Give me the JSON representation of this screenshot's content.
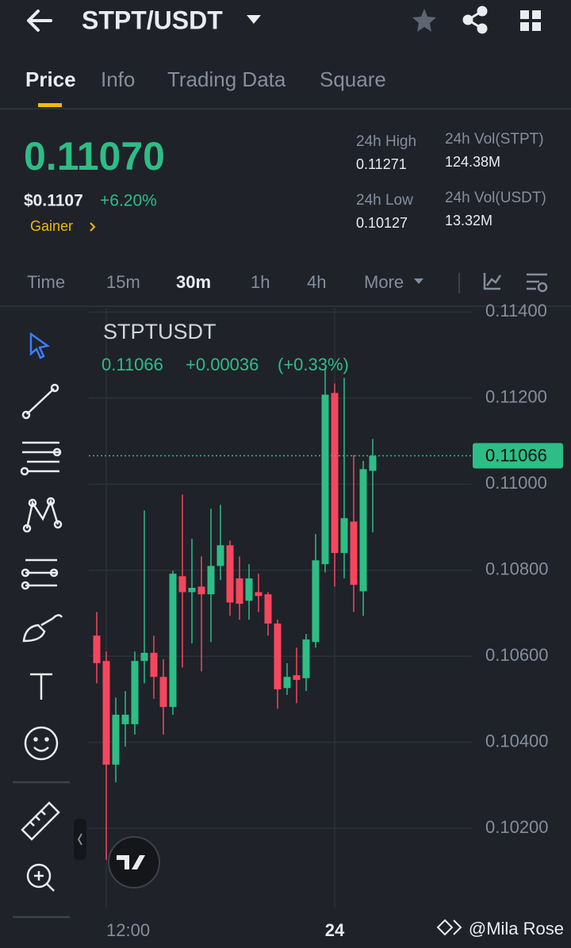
{
  "header": {
    "pair": "STPT/USDT"
  },
  "tabs": [
    "Price",
    "Info",
    "Trading Data",
    "Square"
  ],
  "ticker": {
    "price": "0.11070",
    "usd": "$0.1107",
    "change": "+6.20%",
    "tag": "Gainer",
    "stats": [
      {
        "label": "24h High",
        "value": "0.11271"
      },
      {
        "label": "24h Vol(STPT)",
        "value": "124.38M"
      },
      {
        "label": "24h Low",
        "value": "0.10127"
      },
      {
        "label": "24h Vol(USDT)",
        "value": "13.32M"
      }
    ]
  },
  "intervals": [
    "Time",
    "15m",
    "30m",
    "1h",
    "4h",
    "More"
  ],
  "chart_data": {
    "type": "candlestick",
    "title": "STPTUSDT",
    "legend": {
      "last": "0.11066",
      "change": "+0.00036",
      "percent": "(+0.33%)"
    },
    "up_color": "#2ebd85",
    "down_color": "#f6465d",
    "ylim": [
      0.0999,
      0.1141
    ],
    "yticks": [
      {
        "value": 0.114,
        "label": "0.11400"
      },
      {
        "value": 0.112,
        "label": "0.11200"
      },
      {
        "value": 0.11,
        "label": "0.11000"
      },
      {
        "value": 0.108,
        "label": "0.10800"
      },
      {
        "value": 0.106,
        "label": "0.10600"
      },
      {
        "value": 0.104,
        "label": "0.10400"
      },
      {
        "value": 0.102,
        "label": "0.10200"
      }
    ],
    "x_labels": [
      "12:00",
      "24"
    ],
    "last_price": {
      "value": 0.11066,
      "label": "0.11066"
    },
    "candles": [
      {
        "open": 0.10648,
        "high": 0.10703,
        "low": 0.10537,
        "close": 0.10584
      },
      {
        "open": 0.10589,
        "high": 0.10611,
        "low": 0.10127,
        "close": 0.10348
      },
      {
        "open": 0.10348,
        "high": 0.10504,
        "low": 0.10307,
        "close": 0.10464
      },
      {
        "open": 0.10442,
        "high": 0.10519,
        "low": 0.1039,
        "close": 0.10464
      },
      {
        "open": 0.10442,
        "high": 0.10611,
        "low": 0.10418,
        "close": 0.10589
      },
      {
        "open": 0.10589,
        "high": 0.10939,
        "low": 0.10537,
        "close": 0.10608
      },
      {
        "open": 0.10608,
        "high": 0.10648,
        "low": 0.10501,
        "close": 0.10552
      },
      {
        "open": 0.10552,
        "high": 0.10593,
        "low": 0.10418,
        "close": 0.10482
      },
      {
        "open": 0.10482,
        "high": 0.10799,
        "low": 0.10464,
        "close": 0.10792
      },
      {
        "open": 0.10786,
        "high": 0.10976,
        "low": 0.10574,
        "close": 0.10749
      },
      {
        "open": 0.10749,
        "high": 0.10873,
        "low": 0.1063,
        "close": 0.10759
      },
      {
        "open": 0.10762,
        "high": 0.10832,
        "low": 0.10565,
        "close": 0.10744
      },
      {
        "open": 0.10744,
        "high": 0.10943,
        "low": 0.10633,
        "close": 0.1081
      },
      {
        "open": 0.1081,
        "high": 0.10952,
        "low": 0.10777,
        "close": 0.10858
      },
      {
        "open": 0.10858,
        "high": 0.10869,
        "low": 0.10694,
        "close": 0.10725
      },
      {
        "open": 0.10781,
        "high": 0.10832,
        "low": 0.10685,
        "close": 0.10722
      },
      {
        "open": 0.10729,
        "high": 0.10814,
        "low": 0.10685,
        "close": 0.10781
      },
      {
        "open": 0.10749,
        "high": 0.10792,
        "low": 0.10703,
        "close": 0.1074
      },
      {
        "open": 0.10744,
        "high": 0.10749,
        "low": 0.10648,
        "close": 0.10676
      },
      {
        "open": 0.10676,
        "high": 0.10685,
        "low": 0.10478,
        "close": 0.10523
      },
      {
        "open": 0.10526,
        "high": 0.10584,
        "low": 0.1051,
        "close": 0.10552
      },
      {
        "open": 0.10556,
        "high": 0.1062,
        "low": 0.10491,
        "close": 0.10545
      },
      {
        "open": 0.10549,
        "high": 0.10652,
        "low": 0.10519,
        "close": 0.10639
      },
      {
        "open": 0.10633,
        "high": 0.10884,
        "low": 0.1062,
        "close": 0.10823
      },
      {
        "open": 0.10814,
        "high": 0.11271,
        "low": 0.10795,
        "close": 0.11208
      },
      {
        "open": 0.11212,
        "high": 0.11234,
        "low": 0.10762,
        "close": 0.1084
      },
      {
        "open": 0.1084,
        "high": 0.11247,
        "low": 0.10781,
        "close": 0.10921
      },
      {
        "open": 0.10913,
        "high": 0.11068,
        "low": 0.10703,
        "close": 0.10766
      },
      {
        "open": 0.10751,
        "high": 0.11054,
        "low": 0.10694,
        "close": 0.11035
      },
      {
        "open": 0.11031,
        "high": 0.11105,
        "low": 0.10888,
        "close": 0.11066
      }
    ]
  },
  "watermark": "@Mila Rose"
}
